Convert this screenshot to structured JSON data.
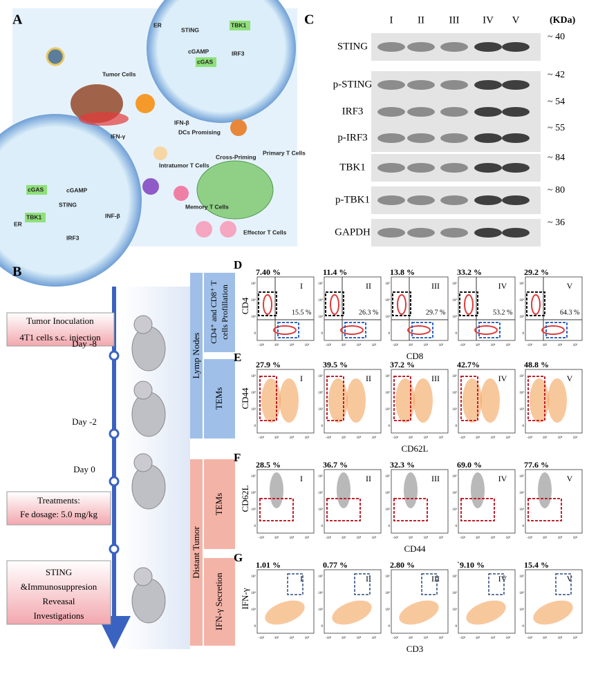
{
  "panel_a": {
    "letter": "A",
    "labels": [
      "Tumor Cells",
      "ER",
      "STING",
      "TBK1",
      "cGAMP",
      "cGAS",
      "IRF3",
      "IFN-β",
      "DCs Promising",
      "IFN-γ",
      "Primary T Cells",
      "Cross-Priming",
      "Intratumor T Cells",
      "Memory T Cells",
      "Effector T Cells",
      "cGAS",
      "cGAMP",
      "ER",
      "STING",
      "TBK1",
      "IRF3",
      "INF-β"
    ]
  },
  "panel_c": {
    "letter": "C",
    "lanes": [
      "I",
      "II",
      "III",
      "IV",
      "V"
    ],
    "unit": "(KDa)",
    "rows": [
      {
        "protein": "STING",
        "kda": "~ 40"
      },
      {
        "protein": "p-STING",
        "kda": "~ 42"
      },
      {
        "protein": "IRF3",
        "kda": "~ 54"
      },
      {
        "protein": "p-IRF3",
        "kda": "~ 55"
      },
      {
        "protein": "TBK1",
        "kda": "~ 84"
      },
      {
        "protein": "p-TBK1",
        "kda": "~ 80"
      },
      {
        "protein": "GAPDH",
        "kda": "~ 36"
      }
    ]
  },
  "panel_b": {
    "letter": "B",
    "inoculation": "Tumor Inoculation",
    "injection": "4T1 cells s.c. injection",
    "days": [
      "Day -8",
      "Day -2",
      "Day 0"
    ],
    "treatments": "Treatments:",
    "dosage": "Fe dosage: 5.0 mg/kg",
    "investigation": [
      "STING",
      "&Immunosuppresion",
      "Reveasal",
      "Investigations"
    ]
  },
  "side_labels": {
    "lymph": "Lymp Nodes",
    "distant": "Distant Tumor",
    "profile": [
      "CD4⁺ and CD8⁺ T",
      "cells Profillation"
    ],
    "tems_1": "TEMs",
    "tems_2": "TEMs",
    "ifn": "IFN-γ Secretion"
  },
  "flow_ticks": {
    "x": [
      "-10³",
      "10³",
      "10⁴",
      "10⁵"
    ],
    "y": [
      "10⁵",
      "10⁴",
      "10³",
      "0"
    ]
  },
  "panel_d": {
    "letter": "D",
    "y_label": "CD4",
    "x_label": "CD8",
    "plots": [
      {
        "numeral": "I",
        "gate1": "7.40 %",
        "gate2": "15.5 %"
      },
      {
        "numeral": "II",
        "gate1": "11.4 %",
        "gate2": "26.3 %"
      },
      {
        "numeral": "III",
        "gate1": "13.8 %",
        "gate2": "29.7 %"
      },
      {
        "numeral": "IV",
        "gate1": "33.2 %",
        "gate2": "53.2 %"
      },
      {
        "numeral": "V",
        "gate1": "29.2 %",
        "gate2": "64.3 %"
      }
    ]
  },
  "panel_e": {
    "letter": "E",
    "y_label": "CD44",
    "x_label": "CD62L",
    "plots": [
      {
        "numeral": "I",
        "gate1": "27.9 %"
      },
      {
        "numeral": "II",
        "gate1": "39.5 %"
      },
      {
        "numeral": "III",
        "gate1": "37.2 %"
      },
      {
        "numeral": "IV",
        "gate1": "42.7%"
      },
      {
        "numeral": "V",
        "gate1": "48.8 %"
      }
    ]
  },
  "panel_f": {
    "letter": "F",
    "y_label": "CD62L",
    "x_label": "CD44",
    "plots": [
      {
        "numeral": "I",
        "gate1": "28.5 %"
      },
      {
        "numeral": "II",
        "gate1": "36.7 %"
      },
      {
        "numeral": "III",
        "gate1": "32.3 %"
      },
      {
        "numeral": "IV",
        "gate1": "69.0 %"
      },
      {
        "numeral": "V",
        "gate1": "77.6 %"
      }
    ]
  },
  "panel_g": {
    "letter": "G",
    "y_label": "IFN-γ",
    "x_label": "CD3",
    "plots": [
      {
        "numeral": "I",
        "gate1": "1.01 %"
      },
      {
        "numeral": "II",
        "gate1": "0.77 %"
      },
      {
        "numeral": "III",
        "gate1": "2.80 %"
      },
      {
        "numeral": "IV",
        "gate1": "`9.10 %"
      },
      {
        "numeral": "V",
        "gate1": "15.4 %"
      }
    ]
  }
}
